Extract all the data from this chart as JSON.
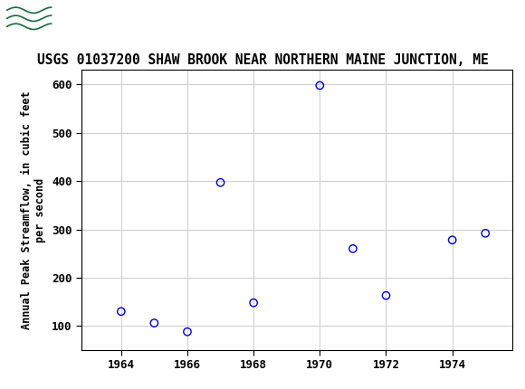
{
  "title": "USGS 01037200 SHAW BROOK NEAR NORTHERN MAINE JUNCTION, ME",
  "ylabel": "Annual Peak Streamflow, in cubic feet\nper second",
  "years": [
    1964,
    1965,
    1966,
    1967,
    1968,
    1970,
    1971,
    1972,
    1974,
    1975
  ],
  "values": [
    130,
    106,
    88,
    397,
    148,
    598,
    260,
    163,
    278,
    292
  ],
  "xlim": [
    1962.8,
    1975.8
  ],
  "ylim": [
    50,
    630
  ],
  "xticks": [
    1964,
    1966,
    1968,
    1970,
    1972,
    1974
  ],
  "yticks": [
    100,
    200,
    300,
    400,
    500,
    600
  ],
  "marker_color": "#0000CC",
  "marker_facecolor": "none",
  "marker_size": 6,
  "marker_linewidth": 1.0,
  "grid_color": "#CCCCCC",
  "background_color": "#FFFFFF",
  "header_color": "#1a6b3c",
  "title_fontsize": 10.5,
  "axis_label_fontsize": 8.5,
  "tick_fontsize": 9,
  "tick_font": "monospace"
}
